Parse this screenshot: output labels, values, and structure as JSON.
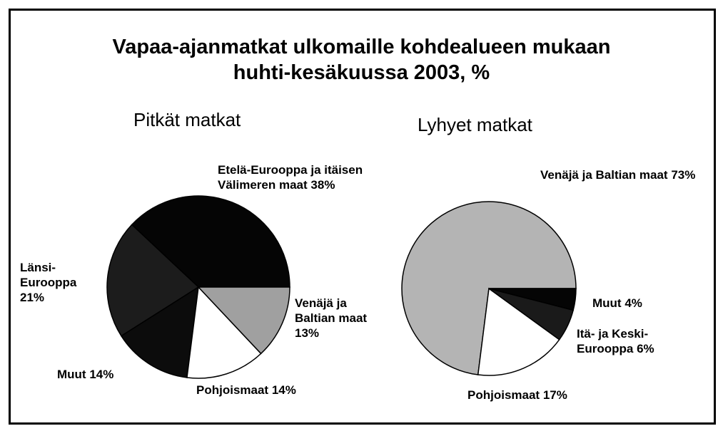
{
  "title": "Vapaa-ajanmatkat ulkomaille kohdealueen mukaan huhti-kesäkuussa 2003, %",
  "chart_data": [
    {
      "type": "pie",
      "title": "Pitkät matkat",
      "categories": [
        "Etelä-Eurooppa ja itäisen Välimeren maat",
        "Länsi-Eurooppa",
        "Muut",
        "Pohjoismaat",
        "Venäjä ja Baltian maat"
      ],
      "values": [
        38,
        21,
        14,
        14,
        13
      ],
      "value_labels": [
        "38%",
        "21%",
        "14%",
        "14%",
        "13%"
      ],
      "colors": [
        "#050505",
        "#1c1c1c",
        "#0c0c0c",
        "#ffffff",
        "#a0a0a0"
      ]
    },
    {
      "type": "pie",
      "title": "Lyhyet matkat",
      "categories": [
        "Venäjä ja Baltian maat",
        "Pohjoismaat",
        "Itä- ja Keski-Eurooppa",
        "Muut"
      ],
      "values": [
        73,
        17,
        6,
        4
      ],
      "value_labels": [
        "73%",
        "17%",
        "6%",
        "4%"
      ],
      "colors": [
        "#b4b4b4",
        "#ffffff",
        "#1a1a1a",
        "#050505"
      ]
    }
  ]
}
